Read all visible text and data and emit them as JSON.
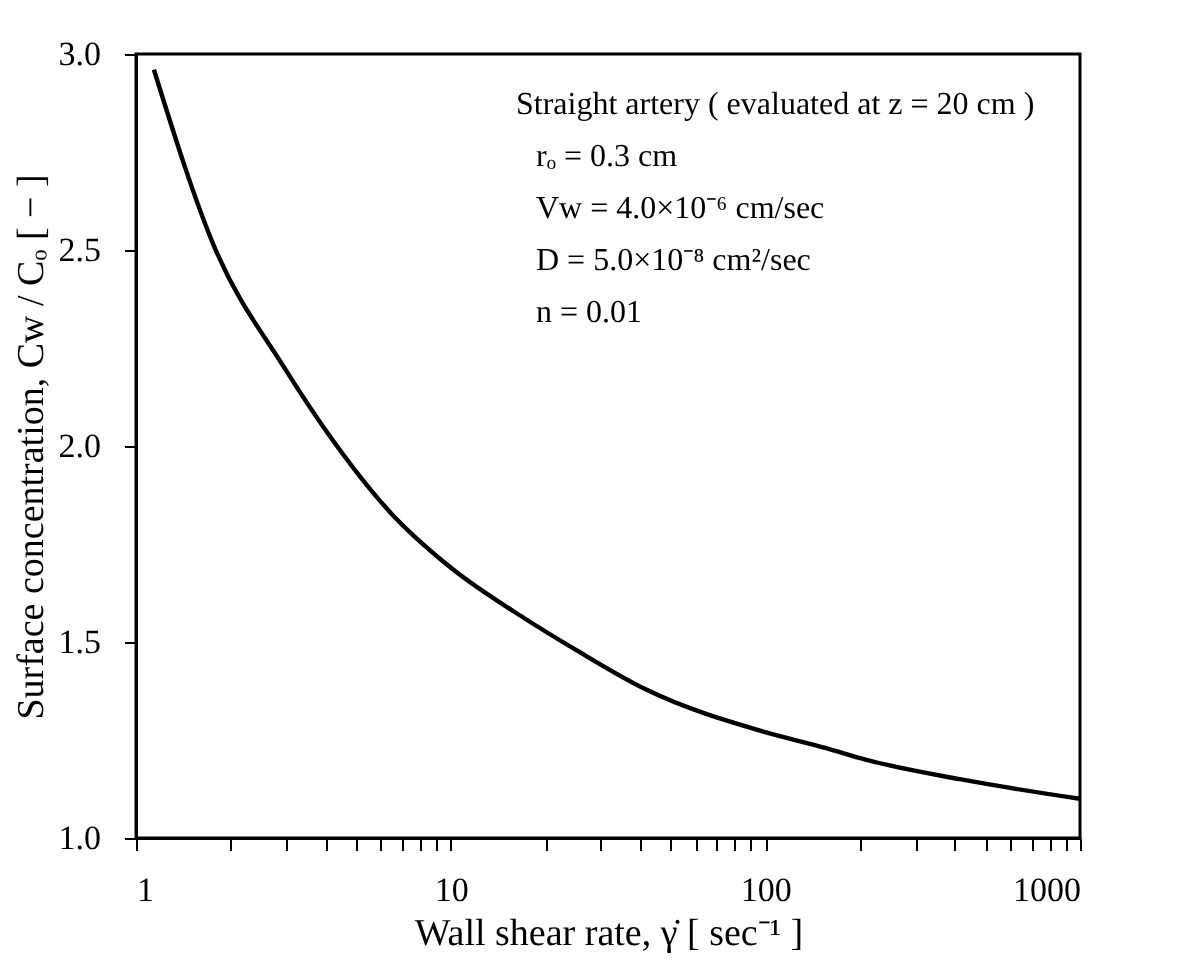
{
  "chart_data": {
    "type": "line",
    "xlabel": "Wall shear rate,  γ̇  [ sec⁻¹ ]",
    "ylabel": "Surface concentration,  Cw / Cₒ  [ − ]",
    "annotations": [
      "Straight artery ( evaluated at z = 20 cm )",
      "rₒ = 0.3 cm",
      "Vw = 4.0×10⁻⁶ cm/sec",
      "D = 5.0×10⁻⁸ cm²/sec",
      "n = 0.01"
    ],
    "series": [
      {
        "color": "#000000",
        "x": [
          1.14,
          1.77,
          2.96,
          4.09,
          6.44,
          10,
          17.2,
          25,
          41.5,
          100,
          155,
          208,
          415,
          1000
        ],
        "values": [
          2.96,
          2.51,
          2.2,
          2.03,
          1.83,
          1.69,
          1.56,
          1.48,
          1.38,
          1.27,
          1.23,
          1.2,
          1.15,
          1.1
        ]
      }
    ],
    "log": "x",
    "xlim": [
      1,
      1000
    ],
    "xticks": [
      1,
      {
        "value": 2,
        "label": null
      },
      {
        "value": 3,
        "label": null
      },
      {
        "value": 4,
        "label": null
      },
      {
        "value": 5,
        "label": null
      },
      {
        "value": 6,
        "label": null
      },
      {
        "value": 7,
        "label": null
      },
      {
        "value": 8,
        "label": null
      },
      {
        "value": 9,
        "label": null
      },
      10,
      {
        "value": 20,
        "label": null
      },
      {
        "value": 30,
        "label": null
      },
      {
        "value": 40,
        "label": null
      },
      {
        "value": 50,
        "label": null
      },
      {
        "value": 60,
        "label": null
      },
      {
        "value": 70,
        "label": null
      },
      {
        "value": 80,
        "label": null
      },
      {
        "value": 90,
        "label": null
      },
      100,
      {
        "value": 200,
        "label": null
      },
      {
        "value": 300,
        "label": null
      },
      {
        "value": 400,
        "label": null
      },
      {
        "value": 500,
        "label": null
      },
      {
        "value": 600,
        "label": null
      },
      {
        "value": 700,
        "label": null
      },
      {
        "value": 800,
        "label": null
      },
      {
        "value": 900,
        "label": null
      },
      1000
    ],
    "ylim": [
      1.0,
      3.0
    ],
    "yticks": [
      {
        "value": 1.0,
        "label": "1.0"
      },
      1.5,
      {
        "value": 2.0,
        "label": "2.0"
      },
      2.5,
      {
        "value": 3.0,
        "label": "3.0"
      }
    ],
    "grid": false,
    "marker": "none",
    "line_style": "solid"
  }
}
